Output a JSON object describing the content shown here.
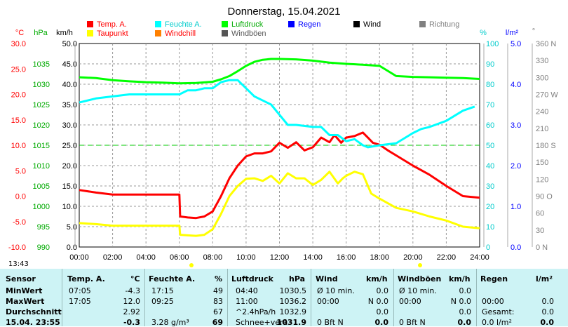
{
  "title": "Donnerstag, 15.04.2021",
  "clock": "13:43",
  "legend": [
    {
      "label": "Temp. A.",
      "color": "#ff0000"
    },
    {
      "label": "Feuchte A.",
      "color": "#00ffff"
    },
    {
      "label": "Luftdruck",
      "color": "#00ff00"
    },
    {
      "label": "Regen",
      "color": "#0000ff"
    },
    {
      "label": "Wind",
      "color": "#000000"
    },
    {
      "label": "Richtung",
      "color": "#808080"
    },
    {
      "label": "Taupunkt",
      "color": "#ffff00"
    },
    {
      "label": "Windchill",
      "color": "#ff8000"
    },
    {
      "label": "Windböen",
      "color": "#555555"
    }
  ],
  "axis_units": {
    "temp": "°C",
    "hpa": "hPa",
    "kmh": "km/h",
    "pct": "%",
    "rain": "l/m²",
    "dir": "°"
  },
  "axes": {
    "temp": [
      "30.0",
      "25.0",
      "20.0",
      "15.0",
      "10.0",
      "5.0",
      "0.0",
      "-5.0",
      "-10.0"
    ],
    "hpa": [
      "1035",
      "1030",
      "1025",
      "1020",
      "1015",
      "1010",
      "1005",
      "1000",
      "995",
      "990"
    ],
    "kmh": [
      "50.0",
      "45.0",
      "40.0",
      "35.0",
      "30.0",
      "25.0",
      "20.0",
      "15.0",
      "10.0",
      "5.0",
      "0.0"
    ],
    "pct": [
      "100",
      "90",
      "80",
      "70",
      "60",
      "50",
      "40",
      "30",
      "20",
      "10",
      "0"
    ],
    "rain": [
      "5.0",
      "4.0",
      "3.0",
      "2.0",
      "1.0",
      "0.0"
    ],
    "dir": [
      "360 N",
      "330",
      "300",
      "270 W",
      "240",
      "210",
      "180 S",
      "150",
      "120",
      "90 O",
      "60",
      "30",
      "0 N"
    ],
    "time": [
      "00:00",
      "02:00",
      "04:00",
      "06:00",
      "08:00",
      "10:00",
      "12:00",
      "14:00",
      "16:00",
      "18:00",
      "20:00",
      "22:00",
      "24:00"
    ]
  },
  "chart_data": {
    "type": "line",
    "title": "Donnerstag, 15.04.2021",
    "x_unit": "hour",
    "xlim": [
      0,
      24
    ],
    "series": [
      {
        "name": "Temp. A.",
        "unit": "°C",
        "color": "#ff0000",
        "axis": "temp",
        "x": [
          0,
          1,
          2,
          3,
          4,
          5,
          6,
          6.05,
          6.5,
          7,
          7.5,
          8,
          8.5,
          9,
          9.5,
          10,
          10.5,
          11,
          11.5,
          12,
          12.5,
          13,
          13.5,
          14,
          14.5,
          15,
          15.3,
          15.7,
          16,
          16.5,
          17,
          17.3,
          17.6,
          18,
          18.5,
          19,
          20,
          21,
          22,
          23,
          24
        ],
        "values": [
          1.2,
          0.7,
          0.3,
          0.3,
          0.3,
          0.3,
          0.3,
          -4.0,
          -4.2,
          -4.3,
          -4.0,
          -3.0,
          0.0,
          3.5,
          6.0,
          7.8,
          8.4,
          8.4,
          8.8,
          10.5,
          9.5,
          10.6,
          9.0,
          9.6,
          11.5,
          10.6,
          12.0,
          10.5,
          11.5,
          11.8,
          12.5,
          11.5,
          10.5,
          10.1,
          9.0,
          8.0,
          6.0,
          4.2,
          2.0,
          0.0,
          -0.3
        ]
      },
      {
        "name": "Feuchte A.",
        "unit": "%",
        "color": "#00ffff",
        "axis": "pct",
        "x": [
          0,
          1,
          2,
          3,
          4,
          5,
          6,
          6.5,
          7,
          7.5,
          8,
          8.5,
          9,
          9.5,
          10,
          10.5,
          11,
          11.5,
          12,
          12.5,
          13,
          14,
          14.5,
          15,
          15.5,
          16,
          16.5,
          17,
          17.3,
          18,
          19,
          20,
          20.5,
          21,
          22,
          23,
          23.7
        ],
        "values": [
          71,
          73,
          74,
          75,
          75,
          75,
          75,
          77,
          77,
          78,
          78,
          81,
          82,
          82,
          78,
          74,
          72,
          70,
          65,
          60,
          60,
          59,
          59,
          55,
          55,
          52,
          53,
          50,
          49,
          50,
          51,
          56,
          58,
          59,
          62,
          67,
          69
        ]
      },
      {
        "name": "Luftdruck",
        "unit": "hPa",
        "color": "#00ff00",
        "axis": "hpa",
        "x": [
          0,
          1,
          2,
          3,
          4,
          5,
          6,
          7,
          8,
          8.5,
          9,
          9.5,
          10,
          10.5,
          11,
          11.5,
          12,
          13,
          14,
          15,
          16,
          17,
          18,
          19,
          20,
          21,
          22,
          23,
          24
        ],
        "values": [
          1031.7,
          1031.5,
          1031.0,
          1030.7,
          1030.5,
          1030.4,
          1030.2,
          1030.3,
          1030.6,
          1031.2,
          1032.0,
          1033.2,
          1034.5,
          1035.5,
          1036.0,
          1036.2,
          1036.2,
          1036.1,
          1035.8,
          1035.3,
          1035.0,
          1034.8,
          1034.5,
          1032.0,
          1031.8,
          1031.7,
          1031.6,
          1031.5,
          1031.3
        ]
      },
      {
        "name": "Taupunkt",
        "unit": "°C",
        "color": "#ffff00",
        "axis": "temp",
        "x": [
          0,
          1,
          2,
          3,
          4,
          5,
          6,
          6.05,
          7,
          7.5,
          8,
          8.5,
          9,
          9.5,
          10,
          10.5,
          11,
          11.5,
          12,
          12.5,
          13,
          13.5,
          14,
          14.5,
          15,
          15.5,
          15.8,
          16,
          16.5,
          17,
          17.5,
          18,
          19,
          20,
          21,
          22,
          23,
          24
        ],
        "values": [
          -5.3,
          -5.5,
          -5.8,
          -5.8,
          -5.8,
          -5.8,
          -5.8,
          -7.6,
          -7.8,
          -7.6,
          -6.5,
          -3.5,
          0.0,
          2.0,
          3.4,
          3.5,
          3.0,
          4.0,
          2.5,
          4.5,
          3.5,
          3.5,
          2.2,
          3.2,
          4.8,
          2.5,
          3.5,
          4.0,
          4.8,
          4.3,
          0.5,
          -0.5,
          -2.3,
          -3.0,
          -4.0,
          -4.8,
          -6.0,
          -6.3
        ]
      }
    ],
    "reference_line": {
      "axis": "dir",
      "value": 180,
      "color": "#00cc00",
      "style": "dashed"
    }
  },
  "table": {
    "headers": {
      "sensor": "Sensor",
      "temp": "Temp. A.",
      "temp_u": "°C",
      "feuchte": "Feuchte A.",
      "feuchte_u": "%",
      "luft": "Luftdruck",
      "luft_u": "hPa",
      "wind": "Wind",
      "wind_u": "km/h",
      "boen": "Windböen",
      "boen_u": "km/h",
      "regen": "Regen",
      "regen_u": "l/m²"
    },
    "rows": [
      {
        "label": "MinWert",
        "t_time": "07:05",
        "t_val": "-4.3",
        "f_time": "17:15",
        "f_val": "49",
        "l_time": "04:40",
        "l_val": "1030.5",
        "w_time": "Ø 10 min.",
        "w_val": "0.0",
        "b_time": "Ø 10 min.",
        "b_val": "0.0",
        "r_time": "",
        "r_val": ""
      },
      {
        "label": "MaxWert",
        "t_time": "17:05",
        "t_val": "12.0",
        "f_time": "09:25",
        "f_val": "83",
        "l_time": "11:00",
        "l_val": "1036.2",
        "w_time": "00:00",
        "w_val": "N 0.0",
        "b_time": "00:00",
        "b_val": "N 0.0",
        "r_time": "00:00",
        "r_val": "0.0"
      },
      {
        "label": "Durchschnitt",
        "t_time": "",
        "t_val": "2.92",
        "f_time": "",
        "f_val": "67",
        "l_time": "^2.4hPa/h",
        "l_val": "1032.9",
        "w_time": "",
        "w_val": "0.0",
        "b_time": "",
        "b_val": "0.0",
        "r_time": "Gesamt:",
        "r_val": "0.0"
      },
      {
        "label": "15.04. 23:55",
        "t_time": "",
        "t_val": "-0.3",
        "f_time": "3.28 g/m³",
        "f_val": "69",
        "l_time": "Schnee+verä",
        "l_val": "1031.9",
        "w_time": "0 Bft N",
        "w_val": "0.0",
        "b_time": "0 Bft N",
        "b_val": "0.0",
        "r_time": "0.0 l/m²",
        "r_val": "0.0"
      }
    ]
  }
}
